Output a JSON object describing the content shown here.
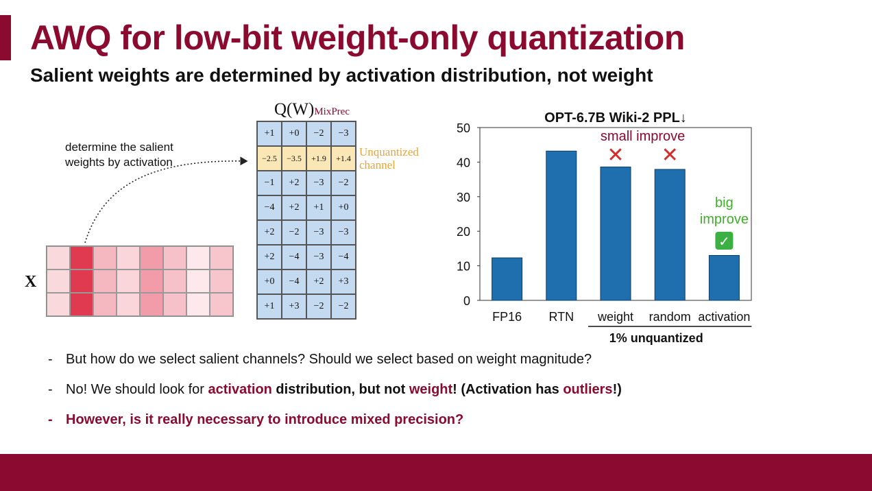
{
  "slide": {
    "title": "AWQ for low-bit weight-only quantization",
    "subtitle": "Salient weights are determined by activation distribution, not weight"
  },
  "diagram": {
    "note_line1": "determine the salient",
    "note_line2": "weights by activation",
    "x_label": "X",
    "activation_shades": [
      [
        "#fad9dd",
        "#e03a50",
        "#f6b8c0",
        "#fad6db",
        "#f19ca8",
        "#f6c1c8",
        "#fde9ec",
        "#f7c5cc"
      ],
      [
        "#fad9dd",
        "#e03a50",
        "#f6b8c0",
        "#fad6db",
        "#f19ca8",
        "#f6c1c8",
        "#fde9ec",
        "#f7c5cc"
      ],
      [
        "#fad9dd",
        "#e03a50",
        "#f6b8c0",
        "#fad6db",
        "#f19ca8",
        "#f6c1c8",
        "#fde9ec",
        "#f7c5cc"
      ]
    ],
    "weight_title_main": "Q(W)",
    "weight_title_sub": "MixPrec",
    "weight_matrix": [
      [
        "+1",
        "+0",
        "−2",
        "−3"
      ],
      [
        "−2.5",
        "−3.5",
        "+1.9",
        "+1.4"
      ],
      [
        "−1",
        "+2",
        "−3",
        "−2"
      ],
      [
        "−4",
        "+2",
        "+1",
        "+0"
      ],
      [
        "+2",
        "−2",
        "−3",
        "−3"
      ],
      [
        "+2",
        "−4",
        "−3",
        "−4"
      ],
      [
        "+0",
        "−4",
        "+2",
        "+3"
      ],
      [
        "+1",
        "+3",
        "−2",
        "−2"
      ]
    ],
    "highlight_row": 1,
    "unquantized_line1": "Unquantized",
    "unquantized_line2": "channel",
    "highlight_color": "#fbe6b6",
    "cell_color": "#c4daf0"
  },
  "chart_data": {
    "type": "bar",
    "title": "OPT-6.7B Wiki-2 PPL↓",
    "categories": [
      "FP16",
      "RTN",
      "weight",
      "random",
      "activation"
    ],
    "values": [
      12.3,
      43.2,
      38.6,
      37.9,
      13.0
    ],
    "ylim": [
      0,
      50
    ],
    "yticks": [
      0,
      10,
      20,
      30,
      40,
      50
    ],
    "grid": false,
    "bar_color": "#1f6fae",
    "group_label": "1% unquantized",
    "annotations": {
      "small_improve": "small improve",
      "big_line1": "big",
      "big_line2": "improve",
      "cross": "✕",
      "check": "✓"
    }
  },
  "bullets": {
    "b1": "But how do we select salient channels? Should we select based on weight magnitude?",
    "b2_p1": "No! We should look for ",
    "b2_p2": "activation",
    "b2_p3": " distribution, but not ",
    "b2_p4": "weight",
    "b2_p5": "! (Activation has ",
    "b2_p6": "outliers",
    "b2_p7": "!)",
    "b3": "However, is it really necessary to introduce mixed precision?",
    "dash": "-"
  },
  "colors": {
    "brand": "#8b0a2f",
    "check_green": "#3cb043",
    "big_improve_green": "#3fae2a"
  }
}
